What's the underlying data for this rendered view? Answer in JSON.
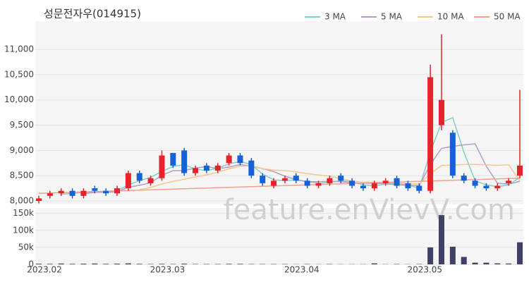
{
  "chart_data": [
    {
      "type": "candlestick",
      "title": "성문전자우(014915)",
      "watermark": "feature.enVievV.com",
      "up_color": "#e8222a",
      "down_color": "#1561d6",
      "grid": true,
      "ylim": [
        7930,
        11560
      ],
      "yticks": [
        {
          "value": 8000,
          "label": "8,000"
        },
        {
          "value": 8500,
          "label": "8,500"
        },
        {
          "value": 9000,
          "label": "9,000"
        },
        {
          "value": 9500,
          "label": "9,500"
        },
        {
          "value": 10000,
          "label": "10,000"
        },
        {
          "value": 10500,
          "label": "10,500"
        },
        {
          "value": 11000,
          "label": "11,000"
        }
      ],
      "open": [
        8000,
        8100,
        8150,
        8200,
        8100,
        8250,
        8200,
        8150,
        8250,
        8550,
        8350,
        8450,
        8950,
        9000,
        8550,
        8700,
        8600,
        8750,
        8900,
        8800,
        8500,
        8300,
        8400,
        8500,
        8400,
        8300,
        8350,
        8500,
        8400,
        8300,
        8250,
        8350,
        8450,
        8350,
        8300,
        8200,
        9500,
        9350,
        8500,
        8400,
        8300,
        8250,
        8350,
        8500
      ],
      "high": [
        8100,
        8200,
        8250,
        8250,
        8250,
        8300,
        8250,
        8300,
        8600,
        8600,
        8500,
        9000,
        8950,
        9050,
        8700,
        8750,
        8750,
        8950,
        8950,
        8850,
        8550,
        8450,
        8500,
        8550,
        8450,
        8400,
        8500,
        8550,
        8450,
        8350,
        8400,
        8450,
        8500,
        8400,
        8350,
        10700,
        11300,
        9400,
        8550,
        8450,
        8350,
        8350,
        8450,
        10200
      ],
      "low": [
        7950,
        8050,
        8100,
        8050,
        8050,
        8150,
        8100,
        8100,
        8200,
        8350,
        8300,
        8400,
        8650,
        8500,
        8500,
        8550,
        8550,
        8700,
        8700,
        8450,
        8300,
        8250,
        8350,
        8350,
        8250,
        8250,
        8300,
        8350,
        8250,
        8200,
        8200,
        8300,
        8250,
        8200,
        8150,
        8150,
        9400,
        8450,
        8350,
        8250,
        8200,
        8200,
        8300,
        8450
      ],
      "close": [
        8050,
        8150,
        8200,
        8100,
        8200,
        8200,
        8150,
        8250,
        8550,
        8400,
        8450,
        8900,
        8700,
        8550,
        8650,
        8600,
        8700,
        8900,
        8750,
        8500,
        8350,
        8400,
        8450,
        8400,
        8300,
        8350,
        8450,
        8400,
        8300,
        8250,
        8350,
        8400,
        8300,
        8250,
        8200,
        10450,
        10000,
        8500,
        8400,
        8300,
        8250,
        8300,
        8400,
        8700
      ],
      "series": [
        {
          "name": "3 MA",
          "color": "#7fd1c8",
          "values": [
            null,
            null,
            8133,
            8150,
            8167,
            8167,
            8183,
            8200,
            8317,
            8400,
            8467,
            8583,
            8683,
            8717,
            8633,
            8600,
            8650,
            8733,
            8783,
            8717,
            8533,
            8417,
            8400,
            8417,
            8383,
            8350,
            8367,
            8400,
            8383,
            8317,
            8300,
            8333,
            8350,
            8317,
            8250,
            8967,
            9550,
            9650,
            8967,
            8400,
            8317,
            8283,
            8317,
            8467
          ]
        },
        {
          "name": "5 MA",
          "color": "#b59bc6",
          "values": [
            null,
            null,
            null,
            null,
            8140,
            8170,
            8170,
            8180,
            8270,
            8310,
            8360,
            8510,
            8600,
            8600,
            8650,
            8680,
            8640,
            8670,
            8720,
            8690,
            8640,
            8580,
            8490,
            8420,
            8380,
            8380,
            8390,
            8380,
            8360,
            8350,
            8350,
            8340,
            8320,
            8310,
            8300,
            8720,
            9040,
            9080,
            9110,
            9130,
            8690,
            8350,
            8330,
            8390
          ]
        },
        {
          "name": "10 MA",
          "color": "#f5c88a",
          "values": [
            null,
            null,
            null,
            null,
            null,
            null,
            null,
            null,
            null,
            8225,
            8265,
            8335,
            8385,
            8430,
            8475,
            8515,
            8570,
            8635,
            8685,
            8695,
            8640,
            8610,
            8600,
            8575,
            8540,
            8515,
            8490,
            8440,
            8395,
            8370,
            8370,
            8370,
            8355,
            8340,
            8330,
            8540,
            8700,
            8710,
            8720,
            8725,
            8715,
            8705,
            8715,
            8400
          ]
        },
        {
          "name": "50 MA",
          "color": "#f4a08a",
          "values": [
            8150,
            8157,
            8164,
            8171,
            8178,
            8185,
            8192,
            8199,
            8206,
            8213,
            8220,
            8227,
            8234,
            8241,
            8248,
            8255,
            8262,
            8269,
            8276,
            8283,
            8290,
            8297,
            8304,
            8311,
            8318,
            8325,
            8332,
            8339,
            8346,
            8353,
            8360,
            8367,
            8374,
            8381,
            8388,
            8395,
            8402,
            8409,
            8416,
            8423,
            8430,
            8437,
            8444,
            8451
          ]
        }
      ]
    },
    {
      "type": "bar",
      "color": "#3d4266",
      "grid": true,
      "categories": [
        "2023.02",
        null,
        null,
        null,
        null,
        null,
        null,
        null,
        null,
        null,
        null,
        "2023.03",
        null,
        null,
        null,
        null,
        null,
        null,
        null,
        null,
        null,
        null,
        null,
        "2023.04",
        null,
        null,
        null,
        null,
        null,
        null,
        null,
        null,
        null,
        null,
        "2023.05",
        null,
        null,
        null,
        null,
        null,
        null,
        null,
        null,
        null
      ],
      "values": [
        2000,
        1500,
        2500,
        1500,
        2000,
        2500,
        1500,
        2000,
        3000,
        1500,
        1000,
        1500,
        1000,
        2000,
        1000,
        1000,
        1000,
        1500,
        1500,
        1000,
        1000,
        1000,
        1000,
        500,
        1000,
        500,
        1000,
        500,
        500,
        500,
        3000,
        500,
        1000,
        500,
        1000,
        50000,
        145000,
        52000,
        22000,
        5000,
        5000,
        3000,
        2500,
        65000
      ],
      "ylim": [
        0,
        166000
      ],
      "yticks": [
        0,
        {
          "value": 50000,
          "label": "50k"
        },
        {
          "value": 100000,
          "label": "100k"
        },
        {
          "value": 150000,
          "label": "150k"
        }
      ]
    }
  ]
}
